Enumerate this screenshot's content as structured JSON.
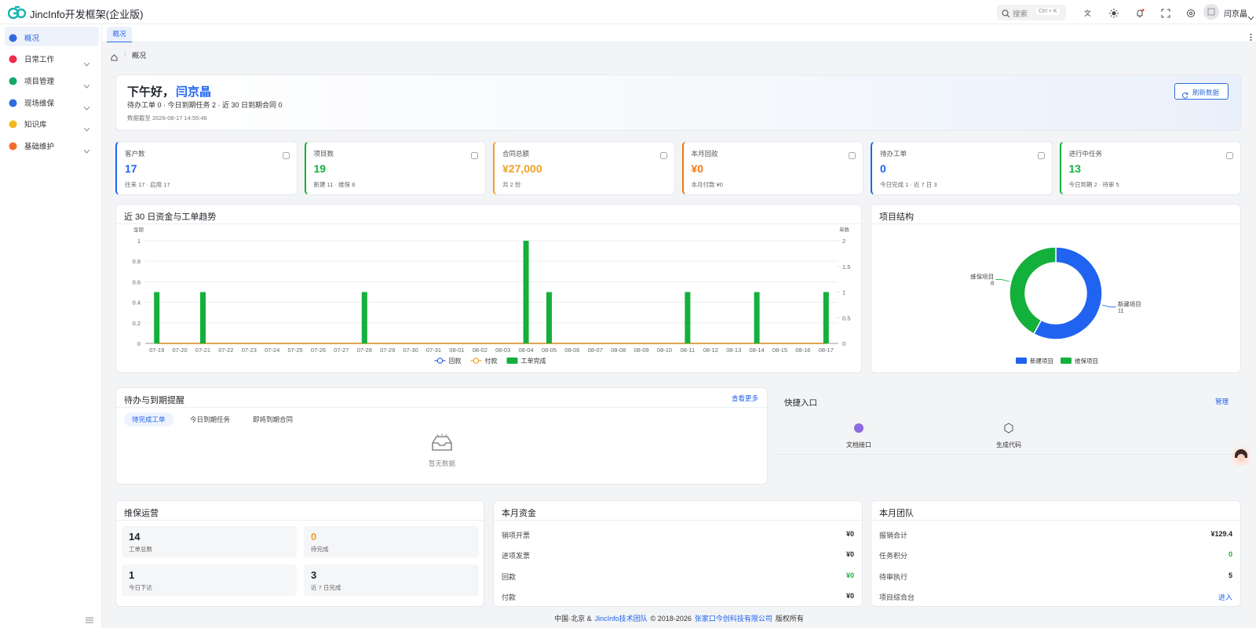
{
  "header": {
    "app_name": "JincInfo开发框架(企业版)",
    "search_placeholder": "搜索",
    "search_shortcut": "Ctrl + K",
    "user_name": "闫京晶"
  },
  "sidebar": {
    "items": [
      "概况",
      "日常工作",
      "项目管理",
      "现场维保",
      "知识库",
      "基础维护"
    ]
  },
  "tabs": [
    "概况"
  ],
  "breadcrumb": [
    "概况"
  ],
  "welcome": {
    "greeting": "下午好，",
    "name": "闫京晶",
    "summary": "待办工单 0 · 今日到期任务 2 · 近 30 日到期合同 0",
    "timestamp": "数据截至 2026-08-17 14:55:46",
    "refresh_button": "刷新数据"
  },
  "stats": [
    {
      "label": "客户数",
      "value": "17",
      "note": "往来 17 · 启用 17"
    },
    {
      "label": "项目数",
      "value": "19",
      "note": "新建 11 · 维保 8"
    },
    {
      "label": "合同总额",
      "value": "¥27,000",
      "note": "共 2 份"
    },
    {
      "label": "本月回款",
      "value": "¥0",
      "note": "本月付款 ¥0"
    },
    {
      "label": "待办工单",
      "value": "0",
      "note": "今日完成 1 · 近 7 日 3"
    },
    {
      "label": "进行中任务",
      "value": "13",
      "note": "今日到期 2 · 待审 5"
    }
  ],
  "chart_data": [
    {
      "type": "bar",
      "title": "近 30 日资金与工单趋势",
      "y_label": "金额",
      "y2_label": "单数",
      "categories": [
        "07-19",
        "07-20",
        "07-21",
        "07-22",
        "07-23",
        "07-24",
        "07-25",
        "07-26",
        "07-27",
        "07-28",
        "07-29",
        "07-30",
        "07-31",
        "08-01",
        "08-02",
        "08-03",
        "08-04",
        "08-05",
        "08-06",
        "08-07",
        "08-08",
        "08-09",
        "08-10",
        "08-11",
        "08-12",
        "08-13",
        "08-14",
        "08-15",
        "08-16",
        "08-17"
      ],
      "ylim": [
        0,
        1
      ],
      "yticks": [
        0,
        0.2,
        0.4,
        0.6,
        0.8,
        1
      ],
      "y2lim": [
        0,
        2
      ],
      "y2ticks": [
        0,
        0.5,
        1,
        1.5,
        2
      ],
      "grid": true,
      "series": [
        {
          "name": "回款",
          "type": "line",
          "color": "#3a62d8",
          "values": [
            0,
            0,
            0,
            0,
            0,
            0,
            0,
            0,
            0,
            0,
            0,
            0,
            0,
            0,
            0,
            0,
            0,
            0,
            0,
            0,
            0,
            0,
            0,
            0,
            0,
            0,
            0,
            0,
            0,
            0
          ]
        },
        {
          "name": "付款",
          "type": "line",
          "color": "#f0a020",
          "values": [
            0,
            0,
            0,
            0,
            0,
            0,
            0,
            0,
            0,
            0,
            0,
            0,
            0,
            0,
            0,
            0,
            0,
            0,
            0,
            0,
            0,
            0,
            0,
            0,
            0,
            0,
            0,
            0,
            0,
            0
          ]
        },
        {
          "name": "工单完成",
          "type": "bar",
          "axis": "y2",
          "color": "#14b03c",
          "values": [
            1,
            0,
            1,
            0,
            0,
            0,
            0,
            0,
            0,
            1,
            0,
            0,
            0,
            0,
            0,
            0,
            2,
            1,
            0,
            0,
            0,
            0,
            0,
            1,
            0,
            0,
            1,
            0,
            0,
            1
          ]
        }
      ]
    },
    {
      "type": "donut",
      "title": "项目结构",
      "categories": [
        "新建项目",
        "维保项目"
      ],
      "values": [
        11,
        8
      ],
      "colors": [
        "#1f63f0",
        "#14b03c"
      ]
    }
  ],
  "todo": {
    "title": "待办与到期提醒",
    "more": "查看更多",
    "tabs": [
      "待完成工单",
      "今日到期任务",
      "即将到期合同"
    ],
    "empty": "暂无数据"
  },
  "quick": {
    "title": "快捷入口",
    "manage": "管理",
    "items": [
      "文档接口",
      "生成代码"
    ]
  },
  "maintenance": {
    "title": "维保运营",
    "items": [
      {
        "value": 14,
        "label": "工单总数"
      },
      {
        "value": 0,
        "label": "待完成"
      },
      {
        "value": 1,
        "label": "今日下达"
      },
      {
        "value": 3,
        "label": "近 7 日完成"
      }
    ]
  },
  "funds": {
    "title": "本月资金",
    "rows": [
      [
        "销项开票",
        "¥0"
      ],
      [
        "进项发票",
        "¥0"
      ],
      [
        "回款",
        "¥0"
      ],
      [
        "付款",
        "¥0"
      ]
    ]
  },
  "team": {
    "title": "本月团队",
    "rows": [
      [
        "报销合计",
        "¥129.4"
      ],
      [
        "任务积分",
        "0"
      ],
      [
        "待审执行",
        "5"
      ],
      [
        "项目综合台",
        "进入"
      ]
    ]
  },
  "footer": {
    "prefix": "中国·北京 &",
    "team": "JincInfo技术团队",
    "copyright": "© 2018-2026",
    "company": "张家口今创科技有限公司",
    "suffix": "版权所有"
  }
}
